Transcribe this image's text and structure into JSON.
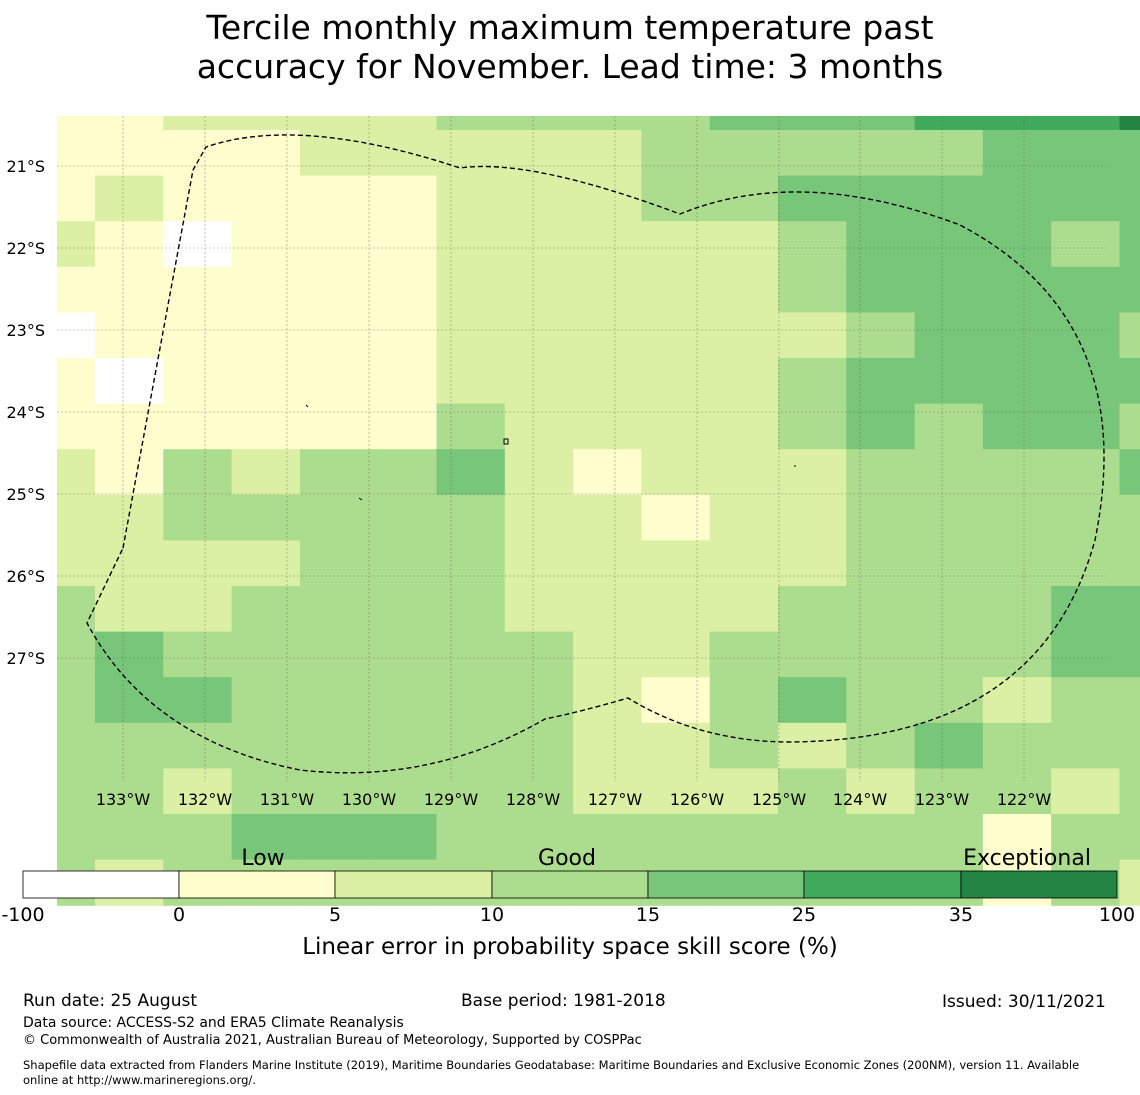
{
  "title": {
    "line1": "Tercile monthly maximum temperature past",
    "line2": "accuracy for November. Lead time: 3 months"
  },
  "map": {
    "lat_labels": [
      "21°S",
      "22°S",
      "23°S",
      "24°S",
      "25°S",
      "26°S",
      "27°S"
    ],
    "lon_labels": [
      "133°W",
      "132°W",
      "131°W",
      "130°W",
      "129°W",
      "128°W",
      "127°W",
      "126°W",
      "125°W",
      "124°W",
      "123°W",
      "122°W"
    ],
    "grid_classes": [
      "112222333344455566",
      "111122222333334444",
      "121111222334444444",
      "210111222223444344",
      "111111222223444444",
      "011111222222344434",
      "101111222223444444",
      "111111322223434434",
      "213233421222333344",
      "223333322122333334",
      "222233322222333334",
      "322333322223333443",
      "343333332233333443",
      "344333332134332333",
      "333333332232343333",
      "332333332223233233",
      "333444333333331333",
      "323333333333331323",
      "323333332222333324"
    ],
    "grid_lat_top": -20.45,
    "grid_lat_step": -0.55,
    "grid_lon_left": -133.8,
    "grid_lon_step": 0.8333
  },
  "legend": {
    "category_labels": [
      "Low",
      "Good",
      "Exceptional"
    ],
    "tick_labels": [
      "-100",
      "0",
      "5",
      "10",
      "15",
      "25",
      "35",
      "100"
    ],
    "colors": [
      "#ffffff",
      "#fefdcd",
      "#dbf0a4",
      "#acdd8e",
      "#78c679",
      "#41ab5d",
      "#238443"
    ],
    "xlabel": "Linear error in probability space skill score (%)"
  },
  "footer": {
    "run_date": "Run date: 25 August",
    "base_period": "Base period: 1981-2018",
    "issued": "Issued: 30/11/2021",
    "data_source": "Data source: ACCESS-S2 and ERA5 Climate Reanalysis",
    "copyright": "© Commonwealth of Australia 2021, Australian Bureau of Meteorology, Supported by COSPPac",
    "shapefile_line1": "Shapefile data extracted from Flanders Marine Institute (2019), Maritime Boundaries Geodatabase: Maritime Boundaries and Exclusive Economic Zones (200NM), version 11. Available",
    "shapefile_line2": "online at http://www.marineregions.org/."
  }
}
